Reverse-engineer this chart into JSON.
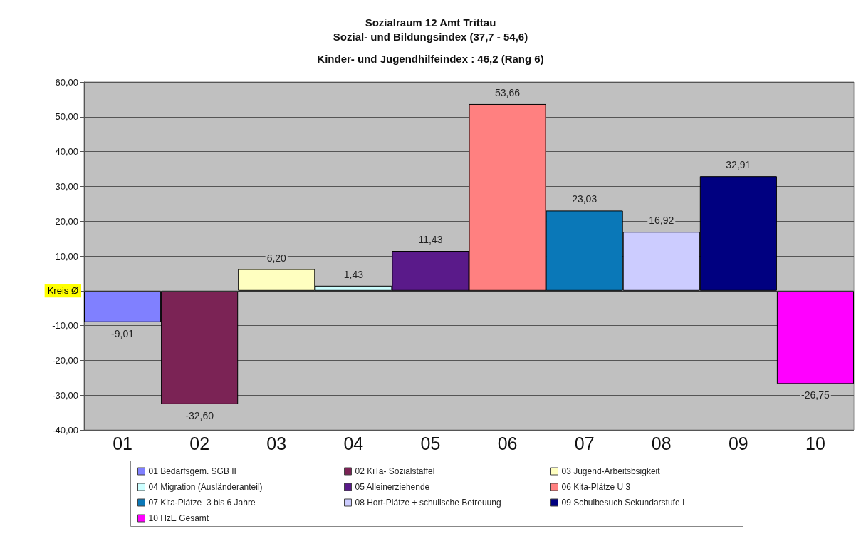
{
  "chart_data": {
    "type": "bar",
    "title": "Sozialraum 12 Amt Trittau\nSozial- und Bildungsindex (37,7 - 54,6)",
    "subtitle": "Kinder- und Jugendhilfeindex : 46,2 (Rang 6)",
    "categories": [
      "01",
      "02",
      "03",
      "04",
      "05",
      "06",
      "07",
      "08",
      "09",
      "10"
    ],
    "stacked": true,
    "series": [
      {
        "name": "01 Bedarfsgem. SGB II",
        "color": "#8080ff",
        "values": [
          -9.01,
          null,
          null,
          null,
          null,
          null,
          null,
          null,
          null,
          null
        ],
        "value_labels": [
          "-9,01",
          null,
          null,
          null,
          null,
          null,
          null,
          null,
          null,
          null
        ]
      },
      {
        "name": "02 KiTa- Sozialstaffel",
        "color": "#7b2355",
        "values": [
          null,
          -32.6,
          null,
          null,
          null,
          null,
          null,
          null,
          null,
          null
        ],
        "value_labels": [
          null,
          "-32,60",
          null,
          null,
          null,
          null,
          null,
          null,
          null,
          null
        ]
      },
      {
        "name": "03 Jugend-Arbeitsbsigkeit",
        "color": "#ffffc0",
        "values": [
          null,
          null,
          6.2,
          null,
          null,
          null,
          null,
          null,
          null,
          null
        ],
        "value_labels": [
          null,
          null,
          "6,20",
          null,
          null,
          null,
          null,
          null,
          null,
          null
        ]
      },
      {
        "name": "04 Migration (Ausländeranteil)",
        "color": "#ccffff",
        "values": [
          null,
          null,
          null,
          1.43,
          null,
          null,
          null,
          null,
          null,
          null
        ],
        "value_labels": [
          null,
          null,
          null,
          "1,43",
          null,
          null,
          null,
          null,
          null,
          null
        ]
      },
      {
        "name": "05 Alleinerziehende",
        "color": "#5a1a8a",
        "values": [
          null,
          null,
          null,
          null,
          11.43,
          null,
          null,
          null,
          null,
          null
        ],
        "value_labels": [
          null,
          null,
          null,
          null,
          "11,43",
          null,
          null,
          null,
          null,
          null
        ]
      },
      {
        "name": "06 Kita-Plätze U 3",
        "color": "#ff8080",
        "values": [
          null,
          null,
          null,
          null,
          null,
          53.66,
          null,
          null,
          null,
          null
        ],
        "value_labels": [
          null,
          null,
          null,
          null,
          null,
          "53,66",
          null,
          null,
          null,
          null
        ]
      },
      {
        "name": "07 Kita-Plätze  3 bis 6 Jahre",
        "color": "#0a78b8",
        "values": [
          null,
          null,
          null,
          null,
          null,
          null,
          23.03,
          null,
          null,
          null
        ],
        "value_labels": [
          null,
          null,
          null,
          null,
          null,
          null,
          "23,03",
          null,
          null,
          null
        ]
      },
      {
        "name": "08 Hort-Plätze + schulische Betreuung",
        "color": "#ccccff",
        "values": [
          null,
          null,
          null,
          null,
          null,
          null,
          null,
          16.92,
          null,
          null
        ],
        "value_labels": [
          null,
          null,
          null,
          null,
          null,
          null,
          null,
          "16,92",
          null,
          null
        ]
      },
      {
        "name": "09 Schulbesuch Sekundarstufe I",
        "color": "#000080",
        "values": [
          null,
          null,
          null,
          null,
          null,
          null,
          null,
          null,
          32.91,
          null
        ],
        "value_labels": [
          null,
          null,
          null,
          null,
          null,
          null,
          null,
          null,
          "32,91",
          null
        ]
      },
      {
        "name": "10 HzE Gesamt",
        "color": "#ff00ff",
        "values": [
          null,
          null,
          null,
          null,
          null,
          null,
          null,
          null,
          null,
          -26.75
        ],
        "value_labels": [
          null,
          null,
          null,
          null,
          null,
          null,
          null,
          null,
          null,
          "-26,75"
        ]
      }
    ],
    "ylim": [
      -40,
      60
    ],
    "yticks": [
      {
        "value": -40,
        "label": "-40,00"
      },
      {
        "value": -30,
        "label": "-30,00"
      },
      {
        "value": -20,
        "label": "-20,00"
      },
      {
        "value": -10,
        "label": "-10,00"
      },
      {
        "value": 0,
        "label": null
      },
      {
        "value": 10,
        "label": "10,00"
      },
      {
        "value": 20,
        "label": "20,00"
      },
      {
        "value": 30,
        "label": "30,00"
      },
      {
        "value": 40,
        "label": "40,00"
      },
      {
        "value": 50,
        "label": "50,00"
      },
      {
        "value": 60,
        "label": "60,00"
      }
    ],
    "ref_lines": [
      {
        "axis": "y",
        "value": 0,
        "label": "Kreis Ø"
      }
    ],
    "grid": "y",
    "legend": "bottom"
  }
}
